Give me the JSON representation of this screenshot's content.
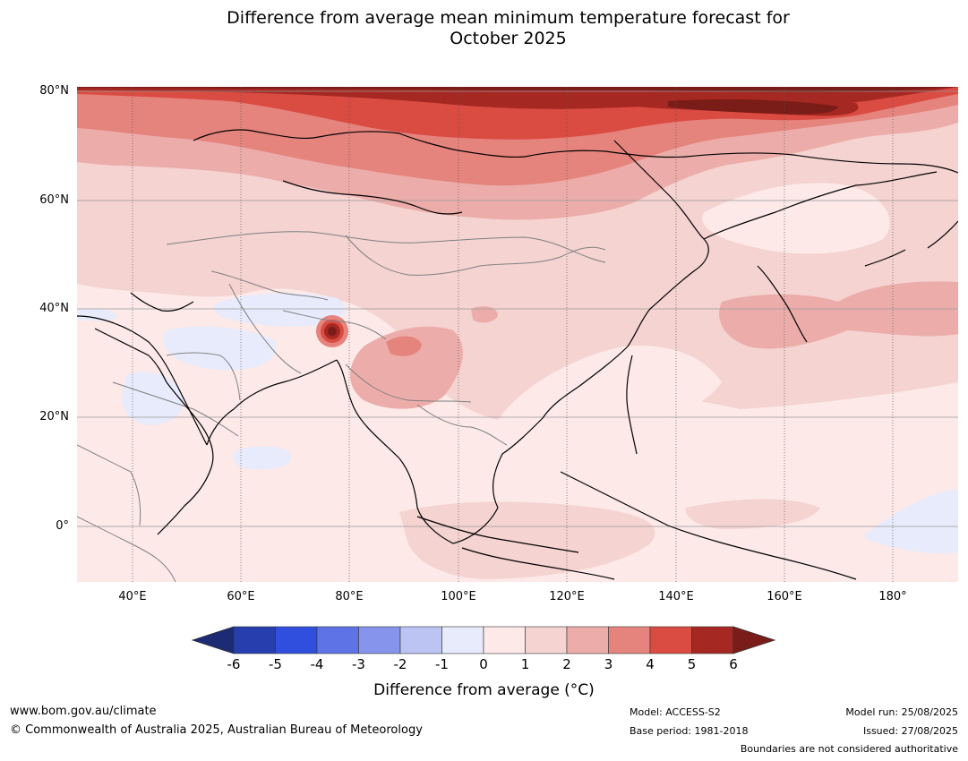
{
  "title": {
    "line1": "Difference from average mean minimum temperature forecast for",
    "line2": "October 2025"
  },
  "map": {
    "lat_labels": [
      "80°N",
      "60°N",
      "40°N",
      "20°N",
      "0°"
    ],
    "lon_labels": [
      "40°E",
      "60°E",
      "80°E",
      "100°E",
      "120°E",
      "140°E",
      "160°E",
      "180°"
    ],
    "anomaly_colors": {
      "below_minus6": "#1c2b73",
      "-6_-5": "#263eae",
      "-5_-4": "#304fde",
      "-4_-3": "#5e73e6",
      "-3_-2": "#8694ec",
      "-2_-1": "#bcc4f4",
      "-1_0": "#e8ebfb",
      "0_1": "#fce9e8",
      "1_2": "#f4d3d1",
      "2_3": "#ecadaa",
      "3_4": "#e5837d",
      "4_5": "#da4b42",
      "5_6": "#a62822",
      "above_6": "#7a1c18"
    }
  },
  "colorbar": {
    "ticks": [
      "-6",
      "-5",
      "-4",
      "-3",
      "-2",
      "-1",
      "0",
      "1",
      "2",
      "3",
      "4",
      "5",
      "6"
    ],
    "label": "Difference from average (°C)"
  },
  "footer": {
    "website": "www.bom.gov.au/climate",
    "copyright": "© Commonwealth of Australia 2025, Australian Bureau of Meteorology",
    "model": "Model: ACCESS-S2",
    "base_period": "Base period: 1981-2018",
    "model_run": "Model run: 25/08/2025",
    "issued": "Issued: 27/08/2025",
    "disclaimer": "Boundaries are not considered authoritative"
  }
}
